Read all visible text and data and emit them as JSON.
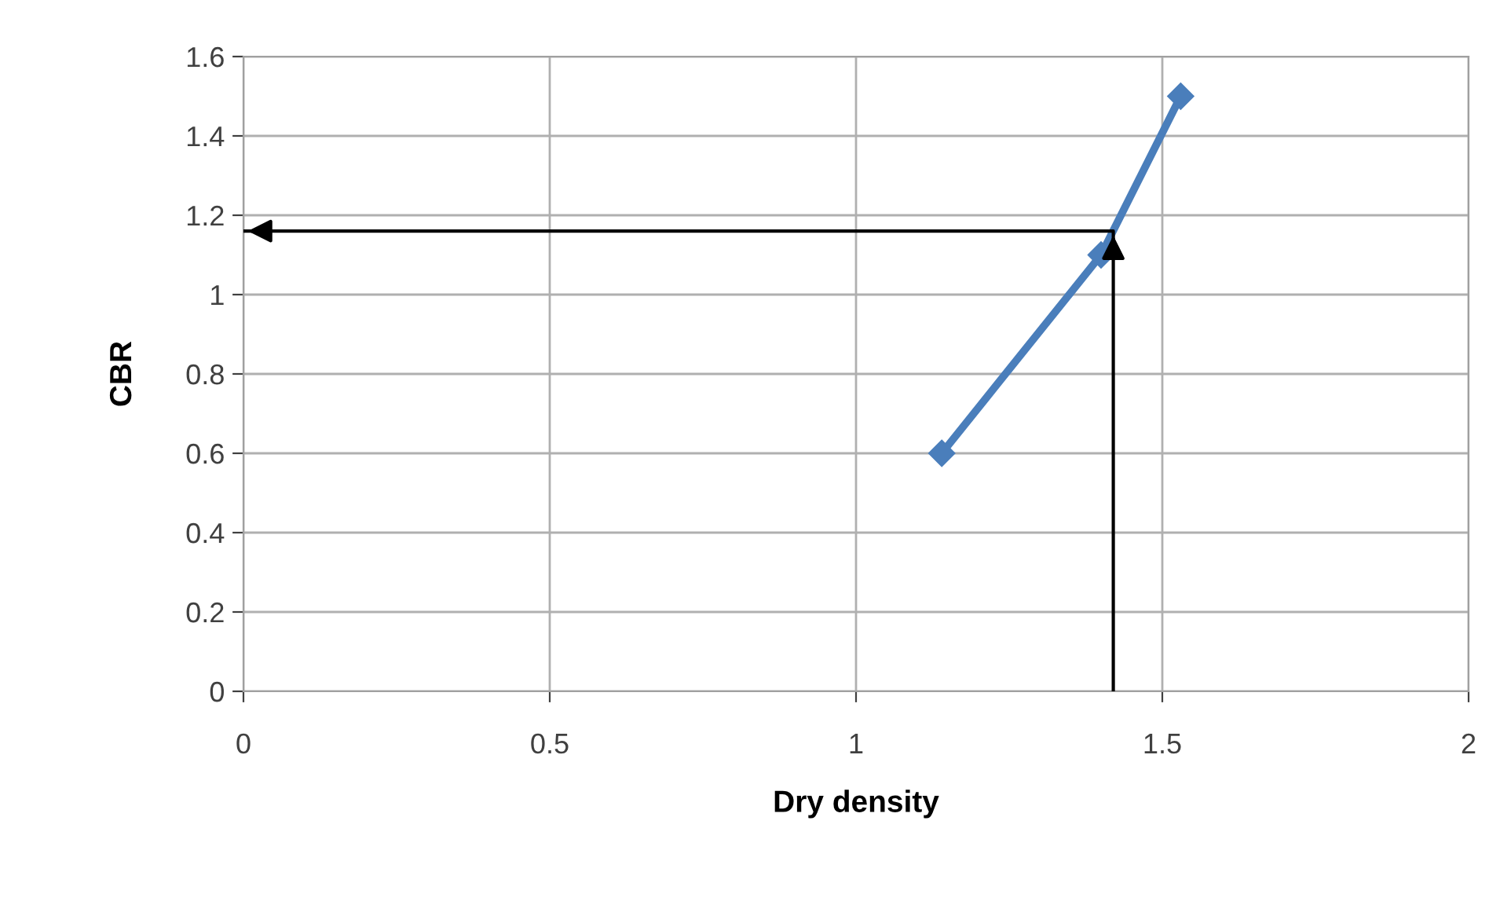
{
  "chart_data": {
    "type": "line",
    "xlabel": "Dry density",
    "ylabel": "CBR",
    "series": [
      {
        "color": "#4a7ebb",
        "x": [
          1.14,
          1.4,
          1.53
        ],
        "values": [
          0.6,
          1.1,
          1.5
        ],
        "marker": "diamond"
      },
      {
        "color": "#000000",
        "x": [
          1.42,
          1.42,
          0
        ],
        "values": [
          0,
          1.16,
          1.16
        ],
        "marker": "none"
      }
    ],
    "xlim": [
      0,
      2
    ],
    "xticks": [
      0,
      0.5,
      1,
      1.5,
      2
    ],
    "ylim": [
      0,
      1.6
    ],
    "yticks": [
      0,
      0.2,
      0.4,
      0.6,
      0.8,
      1,
      1.2,
      1.4,
      1.6
    ],
    "grid": true,
    "legend": false
  }
}
